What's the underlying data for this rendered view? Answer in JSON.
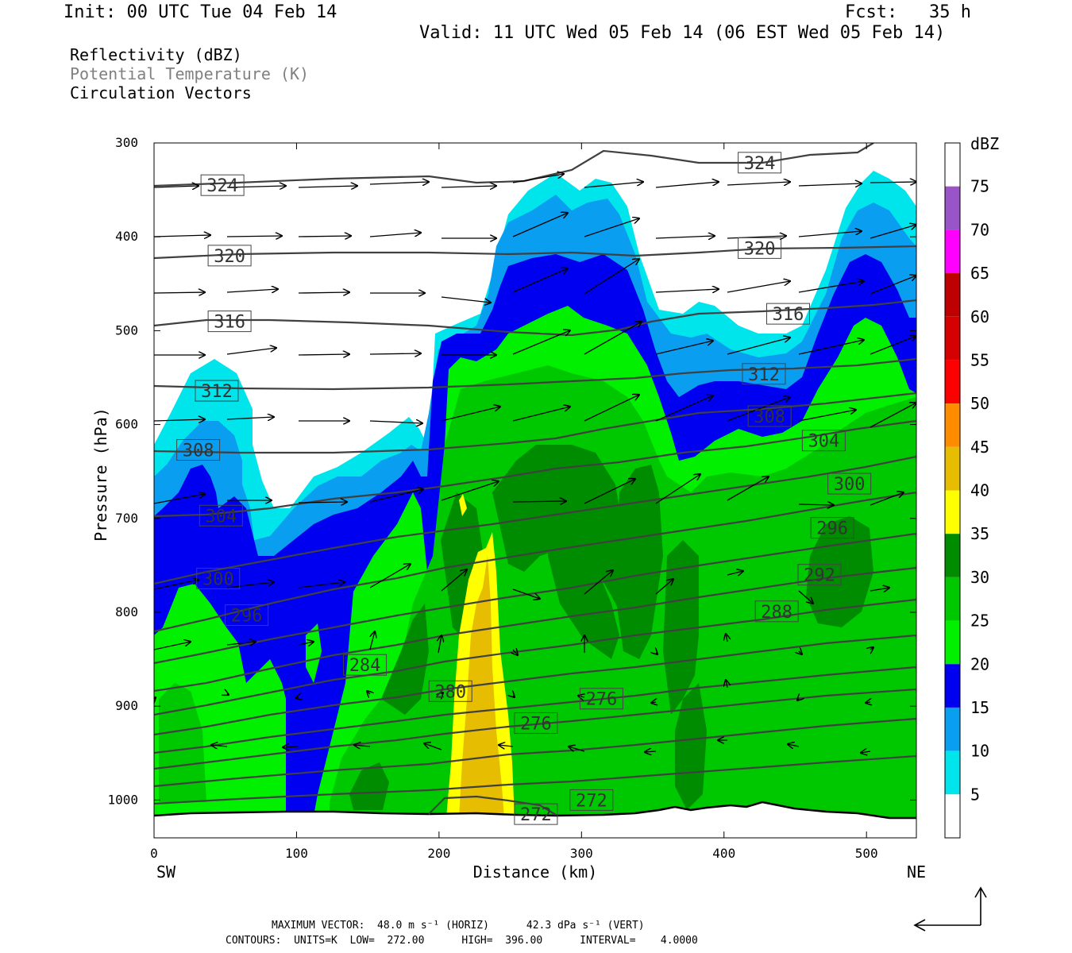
{
  "header": {
    "init": "Init: 00 UTC Tue 04 Feb 14",
    "fcst": "Fcst:   35 h",
    "valid": "Valid: 11 UTC Wed 05 Feb 14 (06 EST Wed 05 Feb 14)"
  },
  "fields": [
    {
      "label": "Reflectivity (dBZ)",
      "color": "#000000"
    },
    {
      "label": "Potential Temperature (K)",
      "color": "#808080"
    },
    {
      "label": "Circulation Vectors",
      "color": "#000000"
    }
  ],
  "footer": {
    "line1": "MAXIMUM VECTOR:  48.0 m s⁻¹ (HORIZ)      42.3 dPa s⁻¹ (VERT)",
    "line2": "CONTOURS:  UNITS=K  LOW=  272.00      HIGH=  396.00      INTERVAL=    4.0000"
  },
  "chart_data": {
    "type": "heatmap",
    "title": "Reflectivity (dBZ)",
    "xlabel": "Distance (km)",
    "ylabel": "Pressure (hPa)",
    "x_ticks": [
      0,
      100,
      200,
      300,
      400,
      500
    ],
    "y_ticks": [
      300,
      400,
      500,
      600,
      700,
      800,
      900,
      1000
    ],
    "xlim": [
      0,
      535
    ],
    "ylim": [
      300,
      1040
    ],
    "x_end_labels": {
      "left": "SW",
      "right": "NE"
    },
    "colorbar": {
      "label": "dBZ",
      "levels": [
        5,
        10,
        15,
        20,
        25,
        30,
        35,
        40,
        45,
        50,
        55,
        60,
        65,
        70,
        75
      ],
      "colors": [
        "#ffffff",
        "#00e5ec",
        "#0a9ef0",
        "#0000f0",
        "#00f000",
        "#00c800",
        "#008c00",
        "#ffff00",
        "#e6bd00",
        "#ff8c00",
        "#ff0000",
        "#d60000",
        "#be0000",
        "#ff00ff",
        "#9955c8",
        "#ffffff"
      ]
    },
    "theta_labels": [
      {
        "value": 324,
        "x": 48,
        "p": 345
      },
      {
        "value": 324,
        "x": 425,
        "p": 321
      },
      {
        "value": 320,
        "x": 53,
        "p": 420
      },
      {
        "value": 320,
        "x": 425,
        "p": 412
      },
      {
        "value": 316,
        "x": 53,
        "p": 490
      },
      {
        "value": 316,
        "x": 445,
        "p": 482
      },
      {
        "value": 312,
        "x": 44,
        "p": 564
      },
      {
        "value": 312,
        "x": 428,
        "p": 546
      },
      {
        "value": 308,
        "x": 31,
        "p": 627
      },
      {
        "value": 308,
        "x": 432,
        "p": 591
      },
      {
        "value": 304,
        "x": 47,
        "p": 697
      },
      {
        "value": 304,
        "x": 470,
        "p": 617
      },
      {
        "value": 300,
        "x": 45,
        "p": 764
      },
      {
        "value": 300,
        "x": 488,
        "p": 663
      },
      {
        "value": 296,
        "x": 65,
        "p": 803
      },
      {
        "value": 296,
        "x": 476,
        "p": 710
      },
      {
        "value": 292,
        "x": 467,
        "p": 760
      },
      {
        "value": 288,
        "x": 437,
        "p": 799
      },
      {
        "value": 284,
        "x": 148,
        "p": 856
      },
      {
        "value": 280,
        "x": 208,
        "p": 884
      },
      {
        "value": 276,
        "x": 268,
        "p": 918
      },
      {
        "value": 276,
        "x": 314,
        "p": 892
      },
      {
        "value": 272,
        "x": 307,
        "p": 1000
      },
      {
        "value": 272,
        "x": 268,
        "p": 1015
      }
    ]
  }
}
